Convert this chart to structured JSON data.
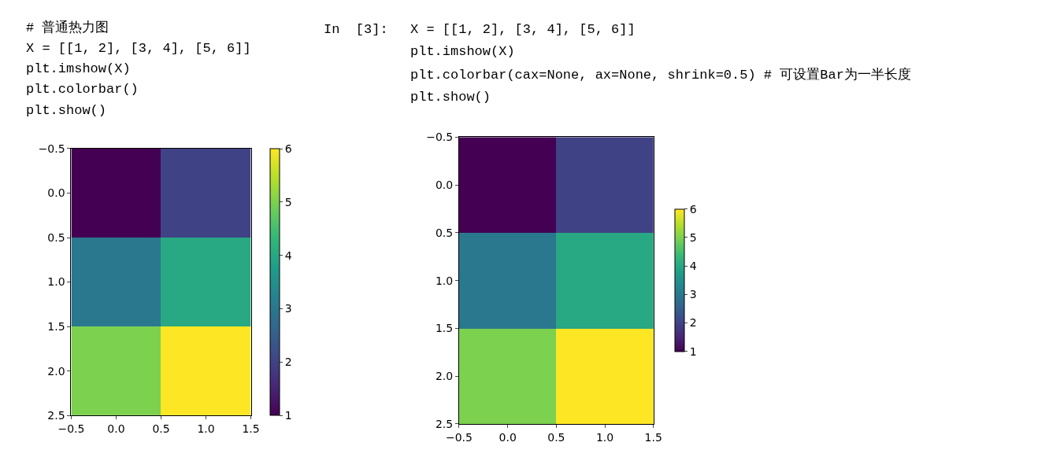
{
  "chart_data": [
    {
      "type": "heatmap",
      "cells": [
        [
          1,
          2
        ],
        [
          3,
          4
        ],
        [
          5,
          6
        ]
      ],
      "xlim": [
        -0.5,
        1.5
      ],
      "xticks": [
        {
          "value": -0.5,
          "label": "−0.5"
        },
        {
          "value": 0,
          "label": "0.0"
        },
        {
          "value": 0.5,
          "label": "0.5"
        },
        {
          "value": 1,
          "label": "1.0"
        },
        {
          "value": 1.5,
          "label": "1.5"
        }
      ],
      "ylim": [
        2.5,
        -0.5
      ],
      "yticks": [
        {
          "value": -0.5,
          "label": "−0.5"
        },
        {
          "value": 0,
          "label": "0.0"
        },
        {
          "value": 0.5,
          "label": "0.5"
        },
        {
          "value": 1,
          "label": "1.0"
        },
        {
          "value": 1.5,
          "label": "1.5"
        },
        {
          "value": 2,
          "label": "2.0"
        },
        {
          "value": 2.5,
          "label": "2.5"
        }
      ],
      "clim": [
        1,
        6
      ],
      "cticks": [
        1,
        2,
        3,
        4,
        5,
        6
      ],
      "annotations": [
        "# 普通热力图",
        "X = [[1, 2], [3, 4], [5, 6]]",
        "plt.imshow(X)",
        "plt.colorbar()",
        "plt.show()"
      ]
    },
    {
      "type": "heatmap",
      "cells": [
        [
          1,
          2
        ],
        [
          3,
          4
        ],
        [
          5,
          6
        ]
      ],
      "xlim": [
        -0.5,
        1.5
      ],
      "xticks": [
        {
          "value": -0.5,
          "label": "−0.5"
        },
        {
          "value": 0,
          "label": "0.0"
        },
        {
          "value": 0.5,
          "label": "0.5"
        },
        {
          "value": 1,
          "label": "1.0"
        },
        {
          "value": 1.5,
          "label": "1.5"
        }
      ],
      "ylim": [
        2.5,
        -0.5
      ],
      "yticks": [
        {
          "value": -0.5,
          "label": "−0.5"
        },
        {
          "value": 0,
          "label": "0.0"
        },
        {
          "value": 0.5,
          "label": "0.5"
        },
        {
          "value": 1,
          "label": "1.0"
        },
        {
          "value": 1.5,
          "label": "1.5"
        },
        {
          "value": 2,
          "label": "2.0"
        },
        {
          "value": 2.5,
          "label": "2.5"
        }
      ],
      "clim": [
        1,
        6
      ],
      "cticks": [
        1,
        2,
        3,
        4,
        5,
        6
      ],
      "annotations": [
        "In  [3]:",
        "X = [[1, 2], [3, 4], [5, 6]]",
        "plt.imshow(X)",
        "plt.colorbar(cax=None, ax=None, shrink=0.5) # 可设置Bar为一半长度",
        "plt.show()"
      ]
    }
  ]
}
